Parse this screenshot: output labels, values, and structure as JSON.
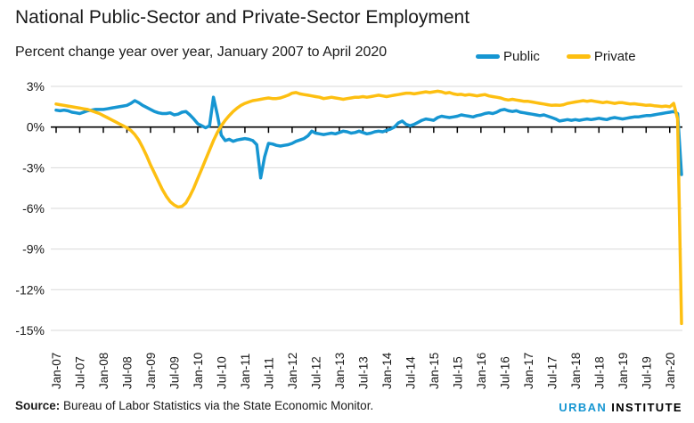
{
  "header": {
    "title": "National Public-Sector and Private-Sector Employment",
    "subtitle": "Percent change year over year, January 2007 to April 2020"
  },
  "footer": {
    "source_label": "Source:",
    "source_text": " Bureau of Labor Statistics via the State Economic Monitor.",
    "logo": {
      "part1": "URBAN",
      "part2": "INSTITUTE"
    }
  },
  "colors": {
    "public_blue": "#1696d2",
    "private_yellow": "#fdbf11",
    "gridline": "#d9d9d9",
    "axis": "#000000",
    "text": "#1a1a1a"
  },
  "chart_data": {
    "type": "line",
    "title": "National Public-Sector and Private-Sector Employment",
    "subtitle": "Percent change year over year, January 2007 to April 2020",
    "x_start": "Jan-07",
    "x_end": "Apr-20",
    "x_frequency": "monthly",
    "x_tick_labels": [
      "Jan-07",
      "Jul-07",
      "Jan-08",
      "Jul-08",
      "Jan-09",
      "Jul-09",
      "Jan-10",
      "Jul-10",
      "Jan-11",
      "Jul-11",
      "Jan-12",
      "Jul-12",
      "Jan-13",
      "Jul-13",
      "Jan-14",
      "Jul-14",
      "Jan-15",
      "Jul-15",
      "Jan-16",
      "Jul-16",
      "Jan-17",
      "Jul-17",
      "Jan-18",
      "Jul-18",
      "Jan-19",
      "Jul-19",
      "Jan-20"
    ],
    "y_ticks": [
      3,
      0,
      -3,
      -6,
      -9,
      -12,
      -15
    ],
    "y_tick_labels": [
      "3%",
      "0%",
      "-3%",
      "-6%",
      "-9%",
      "-12%",
      "-15%"
    ],
    "ylim": [
      -15,
      3
    ],
    "grid": "horizontal",
    "legend_position": "top-right",
    "series": [
      {
        "name": "Public",
        "color": "#1696d2",
        "values": [
          1.25,
          1.2,
          1.25,
          1.2,
          1.1,
          1.05,
          1.0,
          1.1,
          1.2,
          1.25,
          1.3,
          1.3,
          1.3,
          1.35,
          1.4,
          1.45,
          1.5,
          1.55,
          1.6,
          1.75,
          1.95,
          1.8,
          1.6,
          1.45,
          1.3,
          1.15,
          1.05,
          1.0,
          1.0,
          1.05,
          0.9,
          0.95,
          1.1,
          1.15,
          0.9,
          0.6,
          0.25,
          0.1,
          -0.05,
          0.1,
          2.2,
          0.9,
          -0.6,
          -1.0,
          -0.9,
          -1.05,
          -0.95,
          -0.9,
          -0.85,
          -0.9,
          -1.0,
          -1.3,
          -3.75,
          -2.2,
          -1.2,
          -1.25,
          -1.35,
          -1.4,
          -1.35,
          -1.3,
          -1.2,
          -1.05,
          -0.95,
          -0.85,
          -0.65,
          -0.3,
          -0.45,
          -0.5,
          -0.55,
          -0.5,
          -0.45,
          -0.5,
          -0.4,
          -0.3,
          -0.35,
          -0.45,
          -0.4,
          -0.3,
          -0.4,
          -0.5,
          -0.45,
          -0.35,
          -0.3,
          -0.35,
          -0.25,
          -0.15,
          0.0,
          0.3,
          0.45,
          0.2,
          0.1,
          0.2,
          0.35,
          0.5,
          0.6,
          0.55,
          0.5,
          0.7,
          0.8,
          0.75,
          0.7,
          0.75,
          0.8,
          0.9,
          0.85,
          0.8,
          0.75,
          0.85,
          0.9,
          1.0,
          1.05,
          1.0,
          1.1,
          1.25,
          1.3,
          1.2,
          1.15,
          1.2,
          1.1,
          1.05,
          1.0,
          0.95,
          0.9,
          0.85,
          0.9,
          0.8,
          0.7,
          0.6,
          0.45,
          0.5,
          0.55,
          0.5,
          0.55,
          0.5,
          0.55,
          0.6,
          0.55,
          0.6,
          0.65,
          0.6,
          0.55,
          0.65,
          0.7,
          0.65,
          0.6,
          0.65,
          0.7,
          0.75,
          0.75,
          0.8,
          0.85,
          0.85,
          0.9,
          0.95,
          1.0,
          1.05,
          1.1,
          1.15,
          1.0,
          -3.5
        ]
      },
      {
        "name": "Private",
        "color": "#fdbf11",
        "values": [
          1.7,
          1.65,
          1.6,
          1.55,
          1.5,
          1.45,
          1.4,
          1.35,
          1.3,
          1.2,
          1.1,
          1.0,
          0.85,
          0.7,
          0.55,
          0.4,
          0.25,
          0.1,
          -0.05,
          -0.25,
          -0.55,
          -0.95,
          -1.5,
          -2.1,
          -2.8,
          -3.4,
          -4.0,
          -4.6,
          -5.1,
          -5.5,
          -5.75,
          -5.9,
          -5.85,
          -5.6,
          -5.1,
          -4.5,
          -3.8,
          -3.1,
          -2.4,
          -1.7,
          -1.0,
          -0.4,
          0.1,
          0.5,
          0.85,
          1.15,
          1.4,
          1.6,
          1.75,
          1.85,
          1.95,
          2.0,
          2.05,
          2.1,
          2.15,
          2.1,
          2.1,
          2.15,
          2.25,
          2.35,
          2.5,
          2.55,
          2.45,
          2.4,
          2.35,
          2.3,
          2.25,
          2.2,
          2.1,
          2.15,
          2.2,
          2.15,
          2.1,
          2.05,
          2.1,
          2.15,
          2.2,
          2.2,
          2.25,
          2.2,
          2.25,
          2.3,
          2.35,
          2.3,
          2.25,
          2.3,
          2.35,
          2.4,
          2.45,
          2.5,
          2.5,
          2.45,
          2.5,
          2.55,
          2.6,
          2.55,
          2.6,
          2.65,
          2.6,
          2.5,
          2.55,
          2.45,
          2.4,
          2.42,
          2.35,
          2.4,
          2.35,
          2.3,
          2.35,
          2.4,
          2.3,
          2.25,
          2.2,
          2.15,
          2.05,
          2.0,
          2.05,
          2.0,
          1.95,
          1.9,
          1.9,
          1.85,
          1.8,
          1.75,
          1.7,
          1.65,
          1.6,
          1.62,
          1.6,
          1.65,
          1.75,
          1.8,
          1.85,
          1.9,
          1.95,
          1.9,
          1.95,
          1.9,
          1.85,
          1.8,
          1.85,
          1.8,
          1.75,
          1.8,
          1.8,
          1.75,
          1.7,
          1.72,
          1.68,
          1.65,
          1.6,
          1.62,
          1.58,
          1.55,
          1.52,
          1.55,
          1.5,
          1.75,
          0.6,
          -14.5
        ]
      }
    ]
  }
}
